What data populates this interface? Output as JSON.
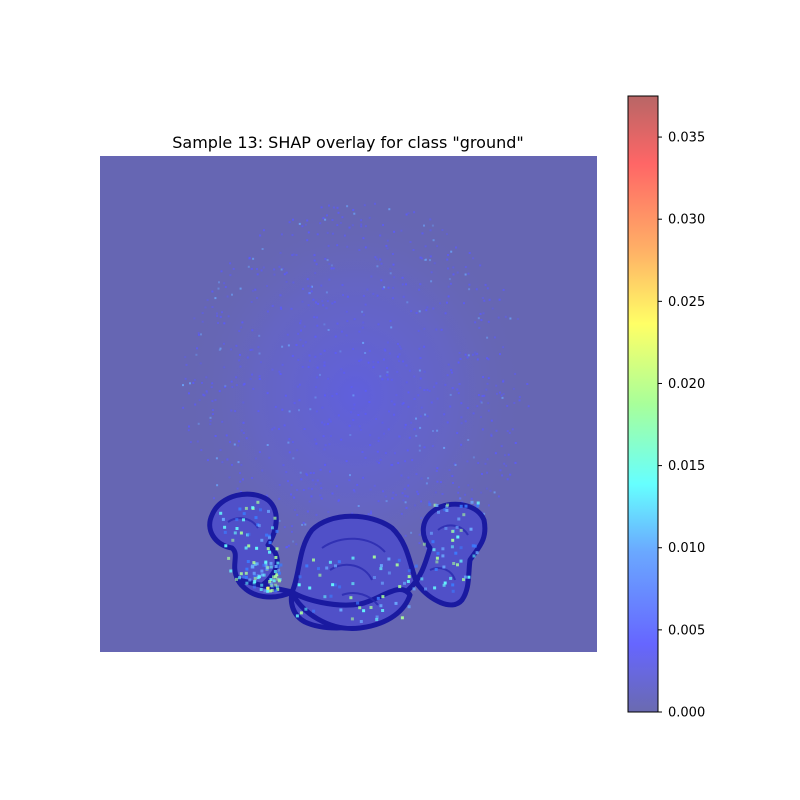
{
  "chart_data": {
    "type": "heatmap",
    "title": "Sample 13: SHAP overlay for class \"ground\"",
    "xlabel": "",
    "ylabel": "",
    "colormap": "jet",
    "overlay_alpha": 0.6,
    "colorbar": {
      "vmin": 0.0,
      "vmax": 0.0375,
      "ticks": [
        0.0,
        0.005,
        0.01,
        0.015,
        0.02,
        0.025,
        0.03,
        0.035
      ],
      "tick_labels": [
        "0.000",
        "0.005",
        "0.010",
        "0.015",
        "0.020",
        "0.025",
        "0.030",
        "0.035"
      ]
    },
    "colors": {
      "background_overlay": "#6666b3",
      "outline": "#1a1aa0",
      "colorbar_low": "#6666b3",
      "colorbar_high": "#b36666"
    }
  }
}
